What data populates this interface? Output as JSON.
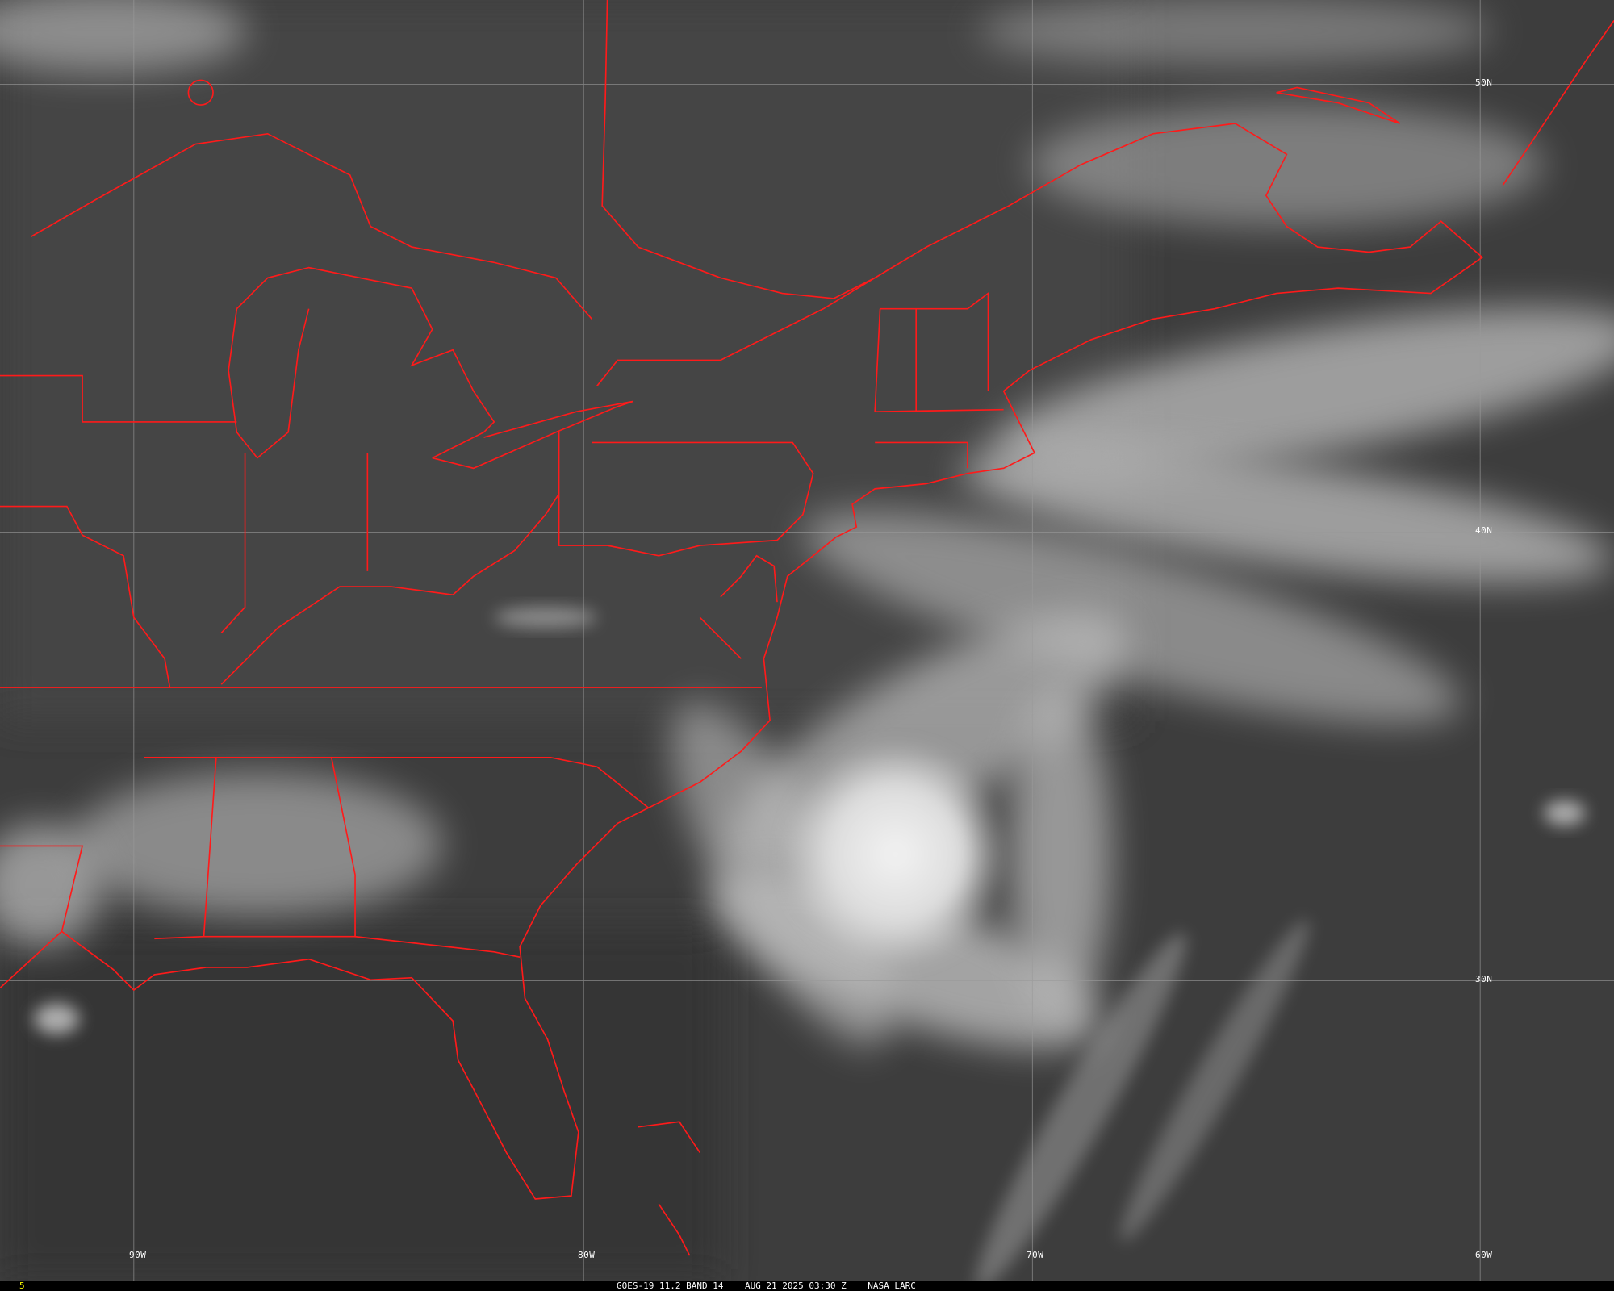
{
  "image": {
    "type": "satellite-infrared",
    "caption": "GOES-19 11.2 BAND 14    AUG 21 2025 03:30 Z    NASA LARC",
    "frame_number": "5",
    "colors": {
      "background": "#3c3c3c",
      "borders": "#ff1a1a",
      "grid": "#9a9a9a",
      "frame_number": "#ffff00"
    }
  },
  "grid": {
    "longitudes": [
      "90W",
      "80W",
      "70W",
      "60W"
    ],
    "latitudes": [
      "50N",
      "40N",
      "30N"
    ]
  }
}
